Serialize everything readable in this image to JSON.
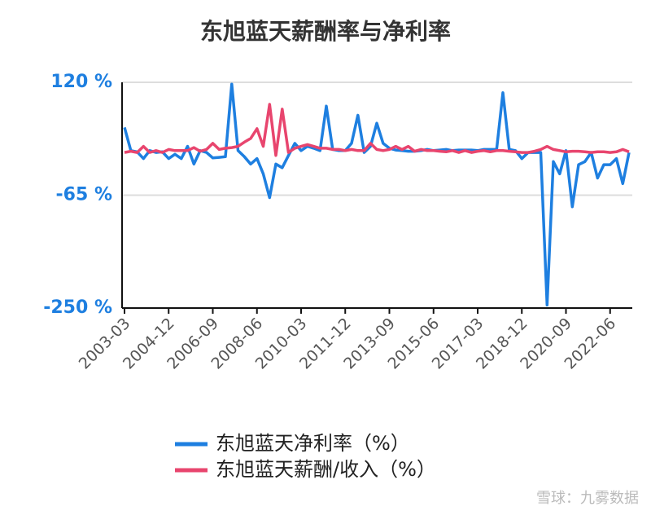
{
  "chart_data": {
    "type": "line",
    "title": "东旭蓝天薪酬率与净利率",
    "categories": [
      "2003-03",
      null,
      null,
      null,
      null,
      null,
      null,
      "2004-12",
      null,
      null,
      null,
      null,
      null,
      null,
      "2006-09",
      null,
      null,
      null,
      null,
      null,
      null,
      "2008-06",
      null,
      null,
      null,
      null,
      null,
      null,
      "2010-03",
      null,
      null,
      null,
      null,
      null,
      null,
      "2011-12",
      null,
      null,
      null,
      null,
      null,
      null,
      "2013-09",
      null,
      null,
      null,
      null,
      null,
      null,
      "2015-06",
      null,
      null,
      null,
      null,
      null,
      null,
      "2017-03",
      null,
      null,
      null,
      null,
      null,
      null,
      "2018-12",
      null,
      null,
      null,
      null,
      null,
      null,
      "2020-09",
      null,
      null,
      null,
      null,
      null,
      null,
      "2022-06",
      null,
      null,
      null
    ],
    "series": [
      {
        "name": "东旭蓝天净利率（%）",
        "color": "#1e7fe0",
        "values": [
          46,
          8,
          6,
          -5,
          8,
          5,
          6,
          -5,
          2,
          -5,
          15,
          -14,
          8,
          5,
          -4,
          -3,
          -2,
          117,
          8,
          -2,
          -14,
          -5,
          -30,
          -69,
          -14,
          -20,
          0,
          20,
          8,
          15,
          12,
          8,
          81,
          10,
          8,
          8,
          20,
          66,
          5,
          15,
          53,
          20,
          12,
          9,
          8,
          7,
          7,
          8,
          10,
          8,
          9,
          10,
          8,
          9,
          9,
          9,
          8,
          10,
          10,
          10,
          103,
          10,
          8,
          -5,
          5,
          5,
          5,
          -245,
          -10,
          -30,
          8,
          -84,
          -15,
          -10,
          5,
          -37,
          -15,
          -15,
          -5,
          -46,
          5
        ]
      },
      {
        "name": "东旭蓝天薪酬/收入（%）",
        "color": "#e8456e",
        "values": [
          5,
          7,
          5,
          15,
          5,
          8,
          5,
          10,
          8,
          8,
          8,
          13,
          7,
          10,
          20,
          10,
          12,
          13,
          15,
          22,
          28,
          44,
          15,
          84,
          0,
          76,
          5,
          12,
          15,
          18,
          15,
          12,
          12,
          10,
          10,
          8,
          10,
          8,
          8,
          20,
          10,
          8,
          10,
          15,
          10,
          15,
          7,
          10,
          8,
          8,
          7,
          6,
          8,
          5,
          8,
          5,
          7,
          8,
          6,
          8,
          8,
          7,
          6,
          5,
          5,
          7,
          10,
          15,
          10,
          8,
          6,
          7,
          7,
          6,
          5,
          6,
          6,
          5,
          6,
          10,
          6
        ]
      }
    ],
    "ylim": [
      -250,
      120
    ],
    "yticks": [
      {
        "value": -250,
        "label": "-250 %"
      },
      {
        "value": -65,
        "label": "-65 %"
      },
      {
        "value": 120,
        "label": "120 %"
      }
    ],
    "grid": true,
    "watermark": "雪球：九雾数据"
  }
}
